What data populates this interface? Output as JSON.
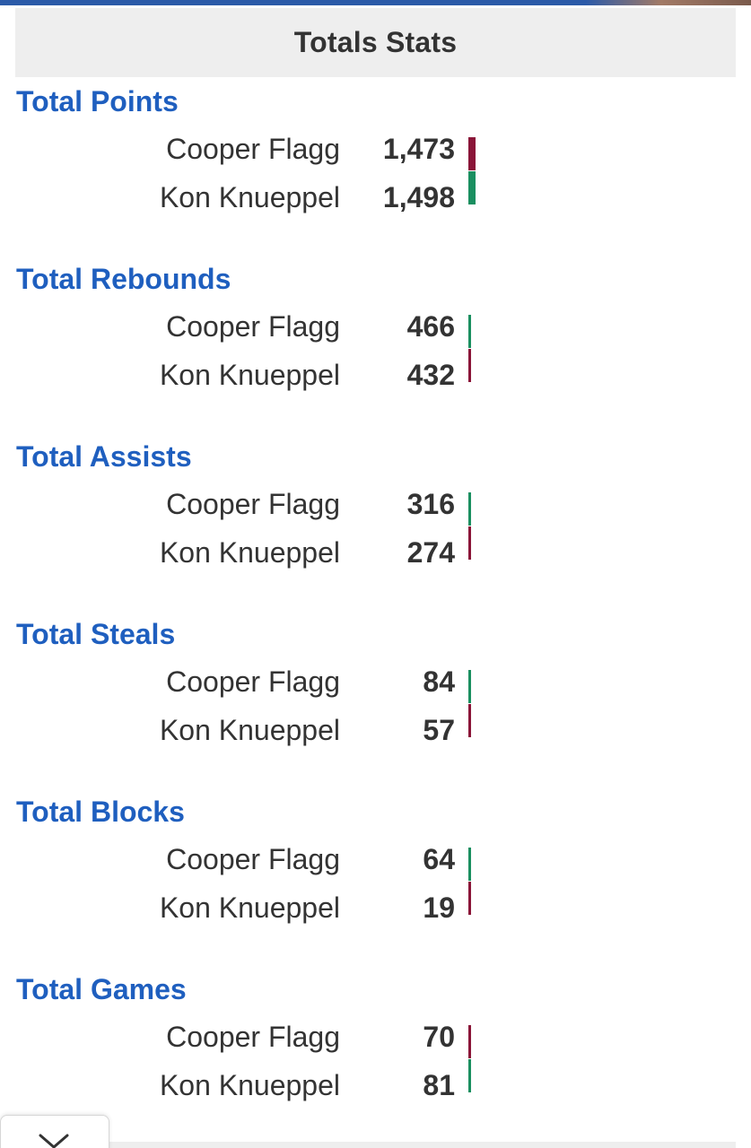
{
  "header": {
    "title": "Totals Stats"
  },
  "colors": {
    "section_title": "#1f5fbf",
    "leader": "#1a8f60",
    "trailer": "#8a1538",
    "text": "#333333",
    "header_bg": "#eeeeee"
  },
  "sections": [
    {
      "title": "Total Points",
      "players": [
        {
          "name": "Cooper Flagg",
          "value": "1,473",
          "leader": false
        },
        {
          "name": "Kon Knueppel",
          "value": "1,498",
          "leader": true
        }
      ]
    },
    {
      "title": "Total Rebounds",
      "players": [
        {
          "name": "Cooper Flagg",
          "value": "466",
          "leader": true
        },
        {
          "name": "Kon Knueppel",
          "value": "432",
          "leader": false
        }
      ]
    },
    {
      "title": "Total Assists",
      "players": [
        {
          "name": "Cooper Flagg",
          "value": "316",
          "leader": true
        },
        {
          "name": "Kon Knueppel",
          "value": "274",
          "leader": false
        }
      ]
    },
    {
      "title": "Total Steals",
      "players": [
        {
          "name": "Cooper Flagg",
          "value": "84",
          "leader": true
        },
        {
          "name": "Kon Knueppel",
          "value": "57",
          "leader": false
        }
      ]
    },
    {
      "title": "Total Blocks",
      "players": [
        {
          "name": "Cooper Flagg",
          "value": "64",
          "leader": true
        },
        {
          "name": "Kon Knueppel",
          "value": "19",
          "leader": false
        }
      ]
    },
    {
      "title": "Total Games",
      "players": [
        {
          "name": "Cooper Flagg",
          "value": "70",
          "leader": false
        },
        {
          "name": "Kon Knueppel",
          "value": "81",
          "leader": true
        }
      ]
    }
  ],
  "collapse": {
    "icon": "chevron-down-icon"
  }
}
